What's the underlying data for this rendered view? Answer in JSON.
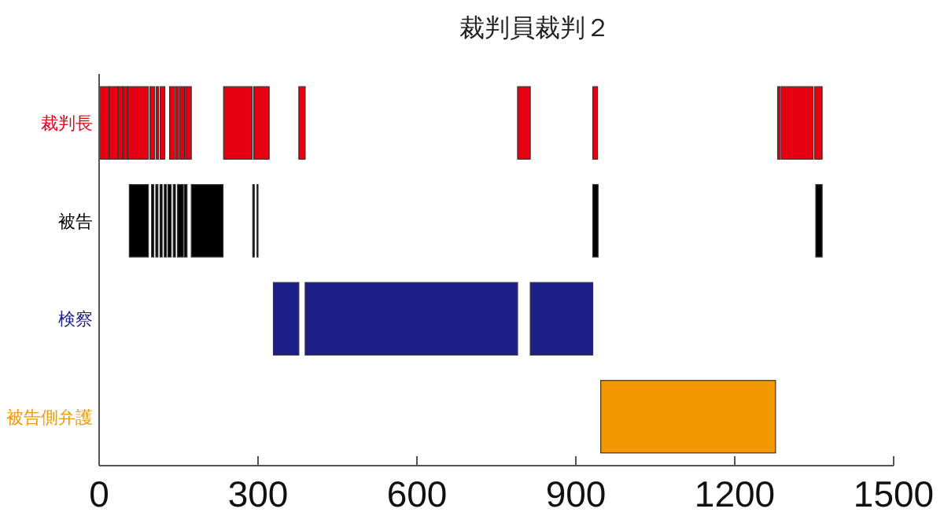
{
  "chart_data": {
    "type": "bar",
    "orientation": "horizontal",
    "title": "裁判員裁判２",
    "categories": [
      "裁判長",
      "被告",
      "検察",
      "被告側弁護"
    ],
    "xlim": [
      0,
      1500
    ],
    "xticks": [
      0,
      300,
      600,
      900,
      1200,
      1500
    ],
    "grid": false,
    "series": [
      {
        "base": [
          0,
          57,
          329,
          947
        ],
        "values": [
          19,
          36,
          48,
          330
        ],
        "colors": [
          "#e60012",
          "#000000",
          "#1c1f85",
          "#f39800"
        ]
      },
      {
        "base": [
          19,
          99,
          389,
          null
        ],
        "values": [
          17,
          4,
          401,
          null
        ],
        "colors": [
          "#e60012",
          "#000000",
          "#1c1f85",
          null
        ]
      },
      {
        "base": [
          36,
          107,
          814,
          null
        ],
        "values": [
          9,
          4,
          118,
          null
        ],
        "colors": [
          "#e60012",
          "#000000",
          "#1c1f85",
          null
        ]
      },
      {
        "base": [
          45,
          115,
          null,
          null
        ],
        "values": [
          9,
          4,
          null,
          null
        ],
        "colors": [
          "#e60012",
          "#000000",
          null,
          null
        ]
      },
      {
        "base": [
          54,
          123,
          null,
          null
        ],
        "values": [
          39,
          4,
          null,
          null
        ],
        "colors": [
          "#e60012",
          "#000000",
          null,
          null
        ]
      },
      {
        "base": [
          96,
          130,
          null,
          null
        ],
        "values": [
          9,
          6,
          null,
          null
        ],
        "colors": [
          "#e60012",
          "#000000",
          null,
          null
        ]
      },
      {
        "base": [
          108,
          140,
          null,
          null
        ],
        "values": [
          4,
          4,
          null,
          null
        ],
        "colors": [
          "#e60012",
          "#000000",
          null,
          null
        ]
      },
      {
        "base": [
          115,
          148,
          null,
          null
        ],
        "values": [
          9,
          11,
          null,
          null
        ],
        "colors": [
          "#e60012",
          "#000000",
          null,
          null
        ]
      },
      {
        "base": [
          133,
          161,
          null,
          null
        ],
        "values": [
          9,
          5,
          null,
          null
        ],
        "colors": [
          "#e60012",
          "#000000",
          null,
          null
        ]
      },
      {
        "base": [
          144,
          174,
          null,
          null
        ],
        "values": [
          6,
          60,
          null,
          null
        ],
        "colors": [
          "#e60012",
          "#000000",
          null,
          null
        ]
      },
      {
        "base": [
          152,
          290,
          null,
          null
        ],
        "values": [
          9,
          3,
          null,
          null
        ],
        "colors": [
          "#e60012",
          "#000000",
          null,
          null
        ]
      },
      {
        "base": [
          163,
          298,
          null,
          null
        ],
        "values": [
          11,
          2,
          null,
          null
        ],
        "colors": [
          "#e60012",
          "#000000",
          null,
          null
        ]
      },
      {
        "base": [
          235,
          932,
          null,
          null
        ],
        "values": [
          54,
          10,
          null,
          null
        ],
        "colors": [
          "#e60012",
          "#000000",
          null,
          null
        ]
      },
      {
        "base": [
          292,
          1353,
          null,
          null
        ],
        "values": [
          29,
          12,
          null,
          null
        ],
        "colors": [
          "#e60012",
          "#000000",
          null,
          null
        ]
      },
      {
        "base": [
          377,
          null,
          null,
          null
        ],
        "values": [
          12,
          null,
          null,
          null
        ],
        "colors": [
          "#e60012",
          null,
          null,
          null
        ]
      },
      {
        "base": [
          790,
          null,
          null,
          null
        ],
        "values": [
          24,
          null,
          null,
          null
        ],
        "colors": [
          "#e60012",
          null,
          null,
          null
        ]
      },
      {
        "base": [
          932,
          null,
          null,
          null
        ],
        "values": [
          9,
          null,
          null,
          null
        ],
        "colors": [
          "#e60012",
          null,
          null,
          null
        ]
      },
      {
        "base": [
          1281,
          null,
          null,
          null
        ],
        "values": [
          5,
          null,
          null,
          null
        ],
        "colors": [
          "#e60012",
          null,
          null,
          null
        ]
      },
      {
        "base": [
          1288,
          null,
          null,
          null
        ],
        "values": [
          60,
          null,
          null,
          null
        ],
        "colors": [
          "#e60012",
          null,
          null,
          null
        ]
      },
      {
        "base": [
          1351,
          null,
          null,
          null
        ],
        "values": [
          14,
          null,
          null,
          null
        ],
        "colors": [
          "#e60012",
          null,
          null,
          null
        ]
      }
    ]
  }
}
